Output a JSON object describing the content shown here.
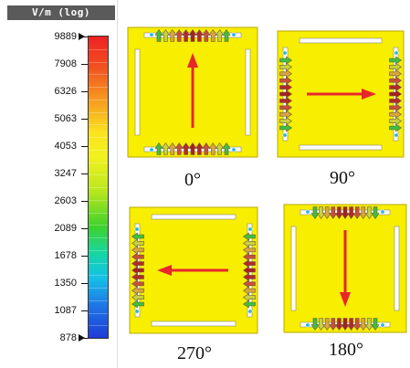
{
  "legend": {
    "title": "V/m (log)",
    "ticks": [
      "9889",
      "7908",
      "6326",
      "5063",
      "4053",
      "3247",
      "2603",
      "2089",
      "1678",
      "1350",
      "1087",
      "878"
    ]
  },
  "panels": [
    {
      "name": "panel-0",
      "angle_label": "0°",
      "field_direction": "up"
    },
    {
      "name": "panel-90",
      "angle_label": "90°",
      "field_direction": "right"
    },
    {
      "name": "panel-270",
      "angle_label": "270°",
      "field_direction": "left"
    },
    {
      "name": "panel-180",
      "angle_label": "180°",
      "field_direction": "down"
    }
  ],
  "colors": {
    "substrate": "#f7ee00",
    "arrow": "#e8262b",
    "slot": "#ffffff"
  }
}
